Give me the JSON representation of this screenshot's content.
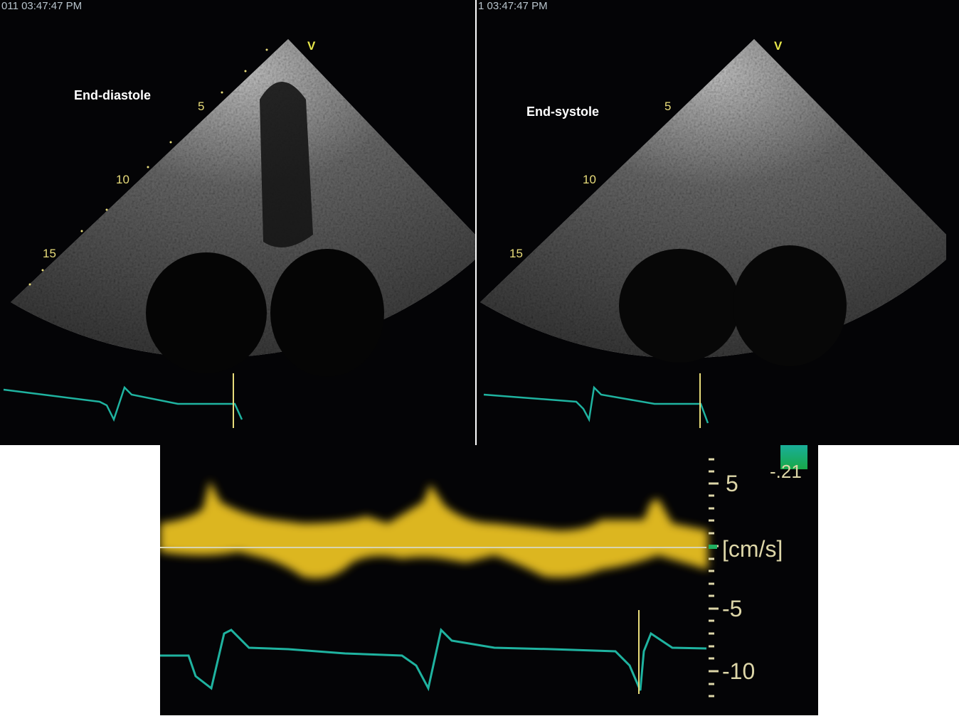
{
  "panels": [
    {
      "timestamp": "011 03:47:47 PM",
      "label": "End-diastole",
      "probe_marker": "V",
      "depth_labels": [
        "5",
        "10",
        "15"
      ]
    },
    {
      "timestamp": "1 03:47:47 PM",
      "label": "End-systole",
      "probe_marker": "V",
      "depth_labels": [
        "5",
        "10",
        "15"
      ]
    }
  ],
  "doppler": {
    "scale_labels": [
      "5",
      "[cm/s]",
      "-5",
      "-10"
    ],
    "color_bar_value": "-.21"
  },
  "colors": {
    "ecg": "#1fb3a0",
    "doppler": "#e8c020",
    "depth_marks": "#e8dc7a"
  }
}
